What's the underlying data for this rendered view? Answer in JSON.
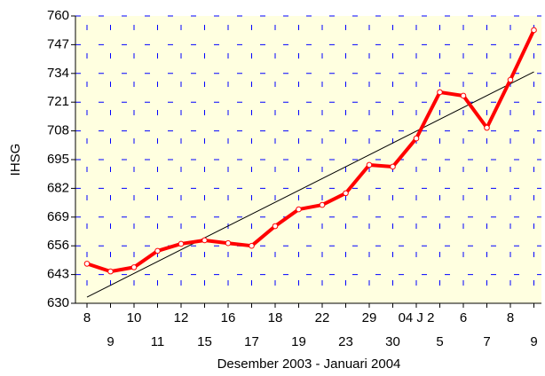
{
  "chart_data": {
    "type": "line",
    "y_label": "IHSG",
    "x_label": "Desember 2003 -  Januari 2004",
    "categories": [
      "8",
      "9",
      "10",
      "11",
      "12",
      "15",
      "16",
      "17",
      "18",
      "19",
      "22",
      "23",
      "29",
      "30",
      "04 J 2",
      "5",
      "6",
      "7",
      "8",
      "9"
    ],
    "series": [
      {
        "color": "#ff0000",
        "values": [
          647.9,
          644.4,
          646.3,
          653.7,
          656.9,
          658.5,
          657.2,
          656.0,
          664.9,
          672.5,
          674.5,
          679.8,
          692.6,
          691.8,
          704.6,
          725.5,
          723.9,
          709.4,
          731.1,
          753.6
        ]
      }
    ],
    "trendline": {
      "color": "#000000",
      "start": 632.8,
      "end": 734.7
    },
    "ylim": [
      630,
      760
    ],
    "yticks": [
      630,
      643,
      656,
      669,
      682,
      695,
      708,
      721,
      734,
      747,
      760
    ],
    "grid": true,
    "grid_color": "#0000ff",
    "background": "#ffffe0"
  }
}
